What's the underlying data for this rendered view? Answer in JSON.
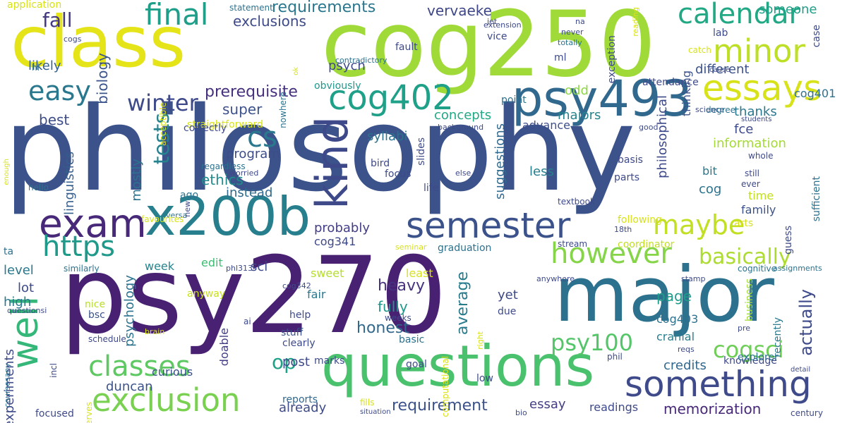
{
  "words": [
    {
      "text": "philosophy",
      "color": "#3b528b"
    },
    {
      "text": "psy270",
      "color": "#482173"
    },
    {
      "text": "cog250",
      "color": "#a0da39"
    },
    {
      "text": "class",
      "color": "#e5e419"
    },
    {
      "text": "major",
      "color": "#2c728e"
    },
    {
      "text": "questions",
      "color": "#4ac16d"
    },
    {
      "text": "x200b",
      "color": "#277f8e"
    },
    {
      "text": "psy493",
      "color": "#31688e"
    },
    {
      "text": "something",
      "color": "#3e4a89"
    },
    {
      "text": "exam",
      "color": "#482878"
    },
    {
      "text": "semester",
      "color": "#3b528b"
    },
    {
      "text": "minor",
      "color": "#bddf26"
    },
    {
      "text": "essays",
      "color": "#d8e219"
    },
    {
      "text": "calendar",
      "color": "#22a884"
    },
    {
      "text": "cog402",
      "color": "#1fa088"
    },
    {
      "text": "final",
      "color": "#1f9e89"
    },
    {
      "text": "well",
      "color": "#35b779"
    },
    {
      "text": "exclusion",
      "color": "#7ad151"
    },
    {
      "text": "classes",
      "color": "#5ec962"
    },
    {
      "text": "however",
      "color": "#86d549"
    },
    {
      "text": "https",
      "color": "#1f9a8a"
    },
    {
      "text": "easy",
      "color": "#2a788e"
    },
    {
      "text": "kind",
      "color": "#3e4989"
    },
    {
      "text": "maybe",
      "color": "#c2df23"
    },
    {
      "text": "cogsci",
      "color": "#6ece58"
    },
    {
      "text": "basically",
      "color": "#addc30"
    },
    {
      "text": "psy100",
      "color": "#54c568"
    },
    {
      "text": "winter",
      "color": "#3e4a89"
    },
    {
      "text": "tests",
      "color": "#26828e"
    },
    {
      "text": "cs",
      "color": "#2a788e"
    },
    {
      "text": "op",
      "color": "#1fa187"
    },
    {
      "text": "fall",
      "color": "#453882"
    },
    {
      "text": "requirements",
      "color": "#2a778e"
    },
    {
      "text": "exclusions",
      "color": "#3e4a89"
    },
    {
      "text": "vervaeke",
      "color": "#3f4788"
    },
    {
      "text": "requirement",
      "color": "#3b528b"
    },
    {
      "text": "memorization",
      "color": "#482878"
    },
    {
      "text": "credits",
      "color": "#31688e"
    },
    {
      "text": "essay",
      "color": "#433e85"
    },
    {
      "text": "heavy",
      "color": "#46327e"
    },
    {
      "text": "honest",
      "color": "#31688e"
    },
    {
      "text": "average",
      "color": "#287c8e"
    },
    {
      "text": "fully",
      "color": "#1f988b"
    },
    {
      "text": "page",
      "color": "#1e9c89"
    },
    {
      "text": "actually",
      "color": "#3e4a89"
    },
    {
      "text": "super",
      "color": "#3b528b"
    },
    {
      "text": "concepts",
      "color": "#22a884"
    },
    {
      "text": "majors",
      "color": "#25848e"
    },
    {
      "text": "thanks",
      "color": "#2a788e"
    },
    {
      "text": "fce",
      "color": "#3e4a89"
    },
    {
      "text": "information",
      "color": "#a5db36"
    },
    {
      "text": "syllabi",
      "color": "#2c728e"
    },
    {
      "text": "linguistics",
      "color": "#355f8d"
    },
    {
      "text": "ethics",
      "color": "#228c8d"
    },
    {
      "text": "instead",
      "color": "#2f6b8e"
    },
    {
      "text": "program",
      "color": "#3d4d8a"
    },
    {
      "text": "prerequisite",
      "color": "#46307e"
    },
    {
      "text": "biology",
      "color": "#3a548c"
    },
    {
      "text": "likely",
      "color": "#355f8d"
    },
    {
      "text": "best",
      "color": "#3d4d8a"
    },
    {
      "text": "probably",
      "color": "#433e85"
    },
    {
      "text": "cog341",
      "color": "#3e4989"
    },
    {
      "text": "cog",
      "color": "#2c738e"
    },
    {
      "text": "bit",
      "color": "#2a788e"
    },
    {
      "text": "time",
      "color": "#c2df23"
    },
    {
      "text": "family",
      "color": "#3b528b"
    },
    {
      "text": "less",
      "color": "#277f8e"
    },
    {
      "text": "suggestions",
      "color": "#306a8e"
    },
    {
      "text": "philosophical",
      "color": "#3e4a89"
    },
    {
      "text": "different",
      "color": "#3b528b"
    },
    {
      "text": "odd",
      "color": "#8ed645"
    },
    {
      "text": "advance",
      "color": "#3d4e8a"
    },
    {
      "text": "psych",
      "color": "#3e4a89"
    },
    {
      "text": "thinking",
      "color": "#3b528b"
    },
    {
      "text": "someone",
      "color": "#1f9f88"
    },
    {
      "text": "lab",
      "color": "#3e4a89"
    },
    {
      "text": "cog401",
      "color": "#2d718e"
    },
    {
      "text": "level",
      "color": "#2a788e"
    },
    {
      "text": "lot",
      "color": "#3e4a89"
    },
    {
      "text": "high",
      "color": "#2a788e"
    },
    {
      "text": "week",
      "color": "#25848e"
    },
    {
      "text": "edit",
      "color": "#3ebc73"
    },
    {
      "text": "sci",
      "color": "#3e4a89"
    },
    {
      "text": "fair",
      "color": "#2a788e"
    },
    {
      "text": "sweet",
      "color": "#b5de2b"
    },
    {
      "text": "least",
      "color": "#d8e219"
    },
    {
      "text": "yet",
      "color": "#3e4989"
    },
    {
      "text": "cog403",
      "color": "#2d708e"
    },
    {
      "text": "cranial",
      "color": "#277f8e"
    },
    {
      "text": "psychology",
      "color": "#2c738e"
    },
    {
      "text": "mostly",
      "color": "#2c728e"
    },
    {
      "text": "post",
      "color": "#3e4a89"
    },
    {
      "text": "doable",
      "color": "#433e85"
    },
    {
      "text": "duncan",
      "color": "#3b528b"
    },
    {
      "text": "curious",
      "color": "#3b528b"
    },
    {
      "text": "already",
      "color": "#3e4a89"
    },
    {
      "text": "readings",
      "color": "#3e4a89"
    },
    {
      "text": "experiments",
      "color": "#3e4a89"
    },
    {
      "text": "anyway",
      "color": "#c8e020"
    },
    {
      "text": "nice",
      "color": "#b8de29"
    },
    {
      "text": "help",
      "color": "#3e4a89"
    },
    {
      "text": "bsc",
      "color": "#3b528b"
    },
    {
      "text": "stuff",
      "color": "#3b528b"
    },
    {
      "text": "basic",
      "color": "#2c728e"
    },
    {
      "text": "goal",
      "color": "#3e4a89"
    },
    {
      "text": "low",
      "color": "#3e4a89"
    },
    {
      "text": "knowledge",
      "color": "#3e4a89"
    },
    {
      "text": "explorer",
      "color": "#2c728e"
    },
    {
      "text": "recently",
      "color": "#2a788e"
    },
    {
      "text": "business",
      "color": "#a5db36"
    },
    {
      "text": "marks",
      "color": "#3e4a89"
    },
    {
      "text": "reports",
      "color": "#31688e"
    },
    {
      "text": "focused",
      "color": "#3e4a89"
    },
    {
      "text": "straightforward",
      "color": "#d8e219"
    },
    {
      "text": "correctly",
      "color": "#3e4a89"
    },
    {
      "text": "obviously",
      "color": "#1f988b"
    },
    {
      "text": "slides",
      "color": "#3e4a89"
    },
    {
      "text": "life",
      "color": "#3e4a89"
    },
    {
      "text": "focus",
      "color": "#3e4a89"
    },
    {
      "text": "bird",
      "color": "#3e4a89"
    },
    {
      "text": "point",
      "color": "#2c728e"
    },
    {
      "text": "vice",
      "color": "#3e4a89"
    },
    {
      "text": "ml",
      "color": "#3e4a89"
    },
    {
      "text": "attendance",
      "color": "#3e4a89"
    },
    {
      "text": "exception",
      "color": "#3e4a89"
    },
    {
      "text": "statement",
      "color": "#2c728e"
    },
    {
      "text": "application",
      "color": "#d8e219"
    },
    {
      "text": "hi",
      "color": "#2c728e"
    },
    {
      "text": "ago",
      "color": "#2c728e"
    },
    {
      "text": "basis",
      "color": "#3e4a89"
    },
    {
      "text": "parts",
      "color": "#3e4a89"
    },
    {
      "text": "following",
      "color": "#d8e219"
    },
    {
      "text": "coordinator",
      "color": "#c2df23"
    },
    {
      "text": "graduation",
      "color": "#2c728e"
    },
    {
      "text": "seminar",
      "color": "#d8e219"
    },
    {
      "text": "cognitive",
      "color": "#2c728e"
    },
    {
      "text": "assignments",
      "color": "#2c728e"
    },
    {
      "text": "sufficient",
      "color": "#2c728e"
    },
    {
      "text": "case",
      "color": "#3e4a89"
    },
    {
      "text": "guess",
      "color": "#3e4a89"
    },
    {
      "text": "arts",
      "color": "#d8e219"
    },
    {
      "text": "18th",
      "color": "#3e4a89"
    },
    {
      "text": "catch",
      "color": "#d8e219"
    },
    {
      "text": "cause",
      "color": "#3e4a89"
    },
    {
      "text": "science",
      "color": "#3e4a89"
    },
    {
      "text": "students",
      "color": "#3e4a89"
    },
    {
      "text": "good",
      "color": "#3e4a89"
    },
    {
      "text": "whole",
      "color": "#3e4a89"
    },
    {
      "text": "still",
      "color": "#3e4a89"
    },
    {
      "text": "ever",
      "color": "#3e4a89"
    },
    {
      "text": "reading",
      "color": "#d8e219"
    },
    {
      "text": "na",
      "color": "#3e4a89"
    },
    {
      "text": "never",
      "color": "#3e4a89"
    },
    {
      "text": "totally",
      "color": "#2c728e"
    },
    {
      "text": "extension",
      "color": "#3e4a89"
    },
    {
      "text": "jet",
      "color": "#3e4a89"
    },
    {
      "text": "cogs",
      "color": "#3e4a89"
    },
    {
      "text": "hello",
      "color": "#2c728e"
    },
    {
      "text": "enough",
      "color": "#d8e219"
    },
    {
      "text": "ta",
      "color": "#2c728e"
    },
    {
      "text": "similarly",
      "color": "#2c728e"
    },
    {
      "text": "questionsi",
      "color": "#3e4a89"
    },
    {
      "text": "coursesany",
      "color": "#2c728e"
    },
    {
      "text": "incl",
      "color": "#3e4a89"
    },
    {
      "text": "nerves",
      "color": "#d8e219"
    },
    {
      "text": "computational",
      "color": "#d8e219"
    },
    {
      "text": "right",
      "color": "#d8e219"
    },
    {
      "text": "due",
      "color": "#3e4a89"
    },
    {
      "text": "schedule",
      "color": "#3e4a89"
    },
    {
      "text": "brain",
      "color": "#d8e219"
    },
    {
      "text": "clearly",
      "color": "#3e4a89"
    },
    {
      "text": "weeks",
      "color": "#3e4a89"
    },
    {
      "text": "fills",
      "color": "#d8e219"
    },
    {
      "text": "situation",
      "color": "#3e4a89"
    },
    {
      "text": "bio",
      "color": "#3e4a89"
    },
    {
      "text": "century",
      "color": "#3e4a89"
    },
    {
      "text": "detail",
      "color": "#3e4a89"
    },
    {
      "text": "phil",
      "color": "#3e4a89"
    },
    {
      "text": "reqs",
      "color": "#3e4a89"
    },
    {
      "text": "pre",
      "color": "#3e4a89"
    },
    {
      "text": "stamp",
      "color": "#3e4a89"
    },
    {
      "text": "anywhere",
      "color": "#3e4a89"
    },
    {
      "text": "stream",
      "color": "#3e4a89"
    },
    {
      "text": "phl313",
      "color": "#3e4a89"
    },
    {
      "text": "cog342",
      "color": "#3e4a89"
    },
    {
      "text": "ai",
      "color": "#3e4a89"
    },
    {
      "text": "versa",
      "color": "#2c728e"
    },
    {
      "text": "new",
      "color": "#3e4a89"
    },
    {
      "text": "favourites",
      "color": "#d8e219"
    },
    {
      "text": "regardless",
      "color": "#2c728e"
    },
    {
      "text": "worried",
      "color": "#3e4a89"
    },
    {
      "text": "textbook",
      "color": "#3e4a89"
    },
    {
      "text": "else",
      "color": "#3e4a89"
    },
    {
      "text": "background",
      "color": "#3e4a89"
    },
    {
      "text": "degree",
      "color": "#2c728e"
    },
    {
      "text": "acceptible",
      "color": "#d8e219"
    },
    {
      "text": "nowhere",
      "color": "#2c728e"
    },
    {
      "text": "ok",
      "color": "#d8e219"
    },
    {
      "text": "contradictory",
      "color": "#2c728e"
    },
    {
      "text": "fault",
      "color": "#3e4a89"
    }
  ]
}
